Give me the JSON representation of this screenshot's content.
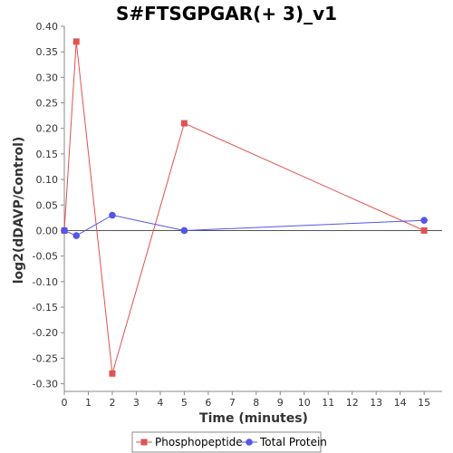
{
  "chart_data": {
    "type": "line",
    "title": "S#FTSGPGAR(+ 3)_v1",
    "xlabel": "Time (minutes)",
    "ylabel": "log2(dDAVP/Control)",
    "xlim": [
      0,
      15.75
    ],
    "ylim": [
      -0.315,
      0.4
    ],
    "xticks": [
      0,
      1,
      2,
      3,
      4,
      5,
      6,
      7,
      8,
      9,
      10,
      11,
      12,
      13,
      14,
      15
    ],
    "yticks": [
      0.4,
      0.35,
      0.3,
      0.25,
      0.2,
      0.15,
      0.1,
      0.05,
      0.0,
      -0.05,
      -0.1,
      -0.15,
      -0.2,
      -0.25,
      -0.3
    ],
    "grid": false,
    "legend_position": "bottom",
    "series": [
      {
        "name": "Phosphopeptide",
        "color": "#e05252",
        "marker": "square",
        "x": [
          0,
          0.5,
          2,
          5,
          15
        ],
        "y": [
          0.0,
          0.37,
          -0.28,
          0.21,
          0.0
        ]
      },
      {
        "name": "Total Protein",
        "color": "#5555e6",
        "marker": "circle",
        "x": [
          0,
          0.5,
          2,
          5,
          15
        ],
        "y": [
          0.0,
          -0.01,
          0.03,
          0.0,
          0.02
        ]
      }
    ]
  }
}
